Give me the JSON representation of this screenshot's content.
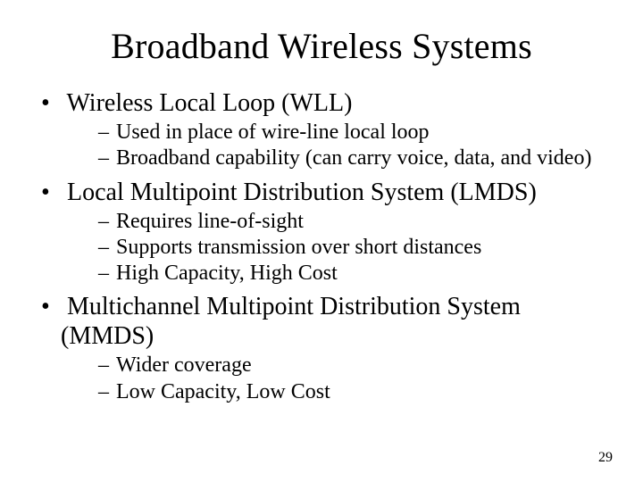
{
  "slide": {
    "title": "Broadband Wireless Systems",
    "title_fontsize": 40,
    "body_fontsize_l1": 28,
    "body_fontsize_l2": 24,
    "background_color": "#ffffff",
    "text_color": "#000000",
    "bullets": [
      {
        "text": "Wireless Local Loop (WLL)",
        "sub": [
          "Used in place of wire-line local loop",
          "Broadband capability (can carry voice, data, and video)"
        ]
      },
      {
        "text": "Local Multipoint Distribution System (LMDS)",
        "sub": [
          "Requires line-of-sight",
          "Supports transmission over short distances",
          "High Capacity, High Cost"
        ]
      },
      {
        "text": "Multichannel Multipoint Distribution System (MMDS)",
        "sub": [
          "Wider coverage",
          "Low Capacity, Low Cost"
        ]
      }
    ],
    "page_number": "29"
  }
}
